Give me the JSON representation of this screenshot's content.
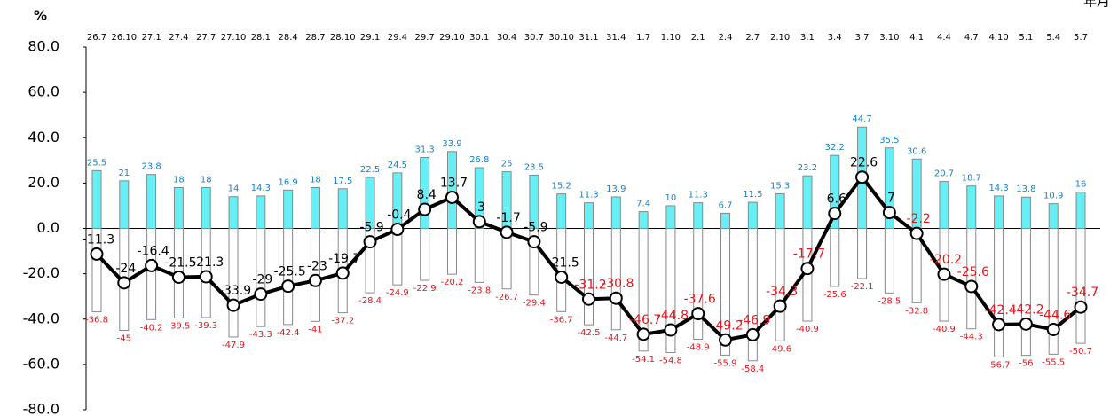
{
  "chart_data": {
    "type": "bar_line",
    "y_unit": "%",
    "x_unit": "年月",
    "categories": [
      "26.7",
      "26.10",
      "27.1",
      "27.4",
      "27.7",
      "27.10",
      "28.1",
      "28.4",
      "28.7",
      "28.10",
      "29.1",
      "29.4",
      "29.7",
      "29.10",
      "30.1",
      "30.4",
      "30.7",
      "30.10",
      "31.1",
      "31.4",
      "1.7",
      "1.10",
      "2.1",
      "2.4",
      "2.7",
      "2.10",
      "3.1",
      "3.4",
      "3.7",
      "3.10",
      "4.1",
      "4.4",
      "4.7",
      "4.10",
      "5.1",
      "5.4",
      "5.7"
    ],
    "series": [
      {
        "type": "bar",
        "color": "#66f0f5",
        "stroke": "#888888",
        "label_color": "#1a7fc4",
        "values": [
          25.5,
          21.0,
          23.8,
          18.0,
          18.0,
          14.0,
          14.3,
          16.9,
          18.0,
          17.5,
          22.5,
          24.5,
          31.3,
          33.9,
          26.8,
          25.0,
          23.5,
          15.2,
          11.3,
          13.9,
          7.4,
          10.0,
          11.3,
          6.7,
          11.5,
          15.3,
          23.2,
          32.2,
          44.7,
          35.5,
          30.6,
          20.7,
          18.7,
          14.3,
          13.8,
          10.9,
          16.0
        ]
      },
      {
        "type": "bar",
        "color": "#ffffff",
        "stroke": "#888888",
        "label_color": "#e8141c",
        "values": [
          -36.8,
          -45.0,
          -40.2,
          -39.5,
          -39.3,
          -47.9,
          -43.3,
          -42.4,
          -41.0,
          -37.2,
          -28.4,
          -24.9,
          -22.9,
          -20.2,
          -23.8,
          -26.7,
          -29.4,
          -36.7,
          -42.5,
          -44.7,
          -54.1,
          -54.8,
          -48.9,
          -55.9,
          -58.4,
          -49.6,
          -40.9,
          -25.6,
          -22.1,
          -28.5,
          -32.8,
          -40.9,
          -44.3,
          -56.7,
          -56.0,
          -55.5,
          -50.7
        ]
      },
      {
        "type": "line",
        "color": "#000000",
        "label_colors": [
          "#000",
          "#000",
          "#000",
          "#000",
          "#000",
          "#000",
          "#000",
          "#000",
          "#000",
          "#000",
          "#000",
          "#000",
          "#000",
          "#000",
          "#000",
          "#000",
          "#000",
          "#000",
          "#e8141c",
          "#e8141c",
          "#e8141c",
          "#e8141c",
          "#e8141c",
          "#e8141c",
          "#e8141c",
          "#e8141c",
          "#e8141c",
          "#000",
          "#000",
          "#000",
          "#e8141c",
          "#e8141c",
          "#e8141c",
          "#e8141c",
          "#e8141c",
          "#e8141c",
          "#e8141c"
        ],
        "values": [
          -11.3,
          -24.0,
          -16.4,
          -21.5,
          -21.3,
          -33.9,
          -29.0,
          -25.5,
          -23.0,
          -19.7,
          -5.9,
          -0.4,
          8.4,
          13.7,
          3.0,
          -1.7,
          -5.9,
          -21.5,
          -31.2,
          -30.8,
          -46.7,
          -44.8,
          -37.6,
          -49.2,
          -46.9,
          -34.3,
          -17.7,
          6.6,
          22.6,
          7.0,
          -2.2,
          -20.2,
          -25.6,
          -42.4,
          -42.2,
          -44.6,
          -34.7
        ]
      }
    ],
    "ylim": [
      -80,
      80
    ],
    "yticks": [
      {
        "value": -80,
        "label": "-80.0"
      },
      {
        "value": -60,
        "label": "-60.0"
      },
      {
        "value": -40,
        "label": "-40.0"
      },
      {
        "value": -20,
        "label": "-20.0"
      },
      {
        "value": 0,
        "label": "0.0"
      },
      {
        "value": 20,
        "label": "20.0"
      },
      {
        "value": 40,
        "label": "40.0"
      },
      {
        "value": 60,
        "label": "60.0"
      },
      {
        "value": 80,
        "label": "80.0"
      }
    ]
  }
}
